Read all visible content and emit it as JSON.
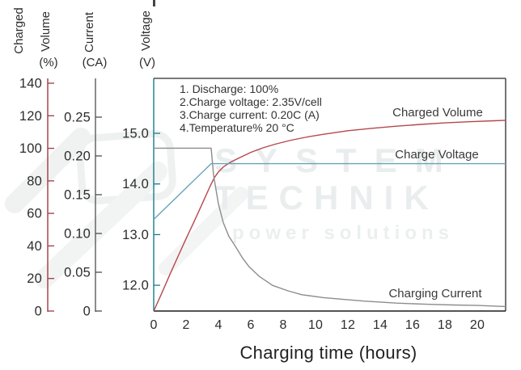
{
  "watermark": {
    "line1": "SYSTEM",
    "line2": "TECHNIK",
    "line3": "power solutions"
  },
  "annotations": [
    "1. Discharge: 100%",
    "2.Charge voltage: 2.35V/cell",
    "3.Charge current: 0.20C (A)",
    "4.Temperature% 20 °C"
  ],
  "axes": {
    "charged_volume": {
      "title_word1": "Charged",
      "title_word2": "Volume",
      "unit": "(%)",
      "color": "#9d3a42",
      "tick_values": [
        0,
        20,
        40,
        60,
        80,
        100,
        120,
        140
      ],
      "tick_labels": [
        "0",
        "20",
        "40",
        "60",
        "80",
        "100",
        "120",
        "140"
      ],
      "range": [
        0,
        143
      ]
    },
    "current": {
      "title": "Current",
      "unit": "(CA)",
      "color": "#4f4f4f",
      "tick_values": [
        0,
        0.05,
        0.1,
        0.15,
        0.2,
        0.25
      ],
      "tick_labels": [
        "0",
        "0.05",
        "0.10",
        "0.15",
        "0.20",
        "0.25"
      ],
      "range": [
        0,
        0.3
      ]
    },
    "voltage": {
      "title": "Voltage",
      "unit": "(V)",
      "color": "#1b7b8f",
      "tick_values": [
        12,
        13,
        14,
        15
      ],
      "tick_labels": [
        "12.0",
        "13.0",
        "14.0",
        "15.0"
      ],
      "range": [
        11.5,
        16.1
      ]
    }
  },
  "chart_data": {
    "type": "line",
    "title": "",
    "xlabel": "Charging time (hours)",
    "ylabel_left1": "Charged Volume (%)",
    "ylabel_left2": "Current (CA)",
    "ylabel_left3": "Voltage (V)",
    "x_range": [
      0,
      21.75
    ],
    "x_ticks": [
      0,
      2,
      4,
      6,
      8,
      10,
      12,
      14,
      16,
      18,
      20
    ],
    "grid": false,
    "legend_position": "inline-labels",
    "series": [
      {
        "name": "charged-volume",
        "label": "Charged Volume",
        "axis": "charged_volume",
        "unit": "%",
        "color": "#b5484d",
        "points": [
          [
            0,
            0
          ],
          [
            0.5,
            11
          ],
          [
            1,
            22.5
          ],
          [
            1.5,
            33.5
          ],
          [
            2,
            44.5
          ],
          [
            2.5,
            55
          ],
          [
            3,
            66
          ],
          [
            3.5,
            77
          ],
          [
            3.75,
            82
          ],
          [
            4,
            85.5
          ],
          [
            4.3,
            88.5
          ],
          [
            4.75,
            91.5
          ],
          [
            5.25,
            94
          ],
          [
            6,
            97.5
          ],
          [
            6.75,
            100.3
          ],
          [
            7.5,
            102.5
          ],
          [
            8.5,
            105
          ],
          [
            9.5,
            107
          ],
          [
            10.5,
            108.6
          ],
          [
            12,
            110.8
          ],
          [
            13.5,
            112.3
          ],
          [
            15,
            113.6
          ],
          [
            16.5,
            114.7
          ],
          [
            18,
            115.6
          ],
          [
            19.5,
            116.3
          ],
          [
            21,
            116.9
          ],
          [
            21.75,
            117.2
          ]
        ]
      },
      {
        "name": "charge-voltage",
        "label": "Charge Voltage",
        "axis": "voltage",
        "unit": "V",
        "color": "#66a3ba",
        "points": [
          [
            0,
            13.3
          ],
          [
            3.55,
            14.4
          ],
          [
            21.75,
            14.4
          ]
        ]
      },
      {
        "name": "charging-current",
        "label": "Charging Current",
        "axis": "current",
        "unit": "CA",
        "color": "#8d8d8d",
        "points": [
          [
            0,
            0.21
          ],
          [
            3.55,
            0.21
          ],
          [
            3.7,
            0.175
          ],
          [
            4,
            0.138
          ],
          [
            4.3,
            0.114
          ],
          [
            4.65,
            0.096
          ],
          [
            5,
            0.085
          ],
          [
            5.5,
            0.068
          ],
          [
            5.9,
            0.057
          ],
          [
            6.5,
            0.045
          ],
          [
            7.35,
            0.033
          ],
          [
            8.3,
            0.026
          ],
          [
            9.15,
            0.021
          ],
          [
            10.5,
            0.0173
          ],
          [
            11.65,
            0.0152
          ],
          [
            13,
            0.0128
          ],
          [
            15,
            0.0102
          ],
          [
            17,
            0.0086
          ],
          [
            18.5,
            0.0078
          ],
          [
            20,
            0.0072
          ],
          [
            21.75,
            0.0058
          ]
        ]
      }
    ],
    "conditions": [
      "1. Discharge: 100%",
      "2.Charge voltage: 2.35V/cell",
      "3.Charge current: 0.20C (A)",
      "4.Temperature% 20 °C"
    ]
  }
}
